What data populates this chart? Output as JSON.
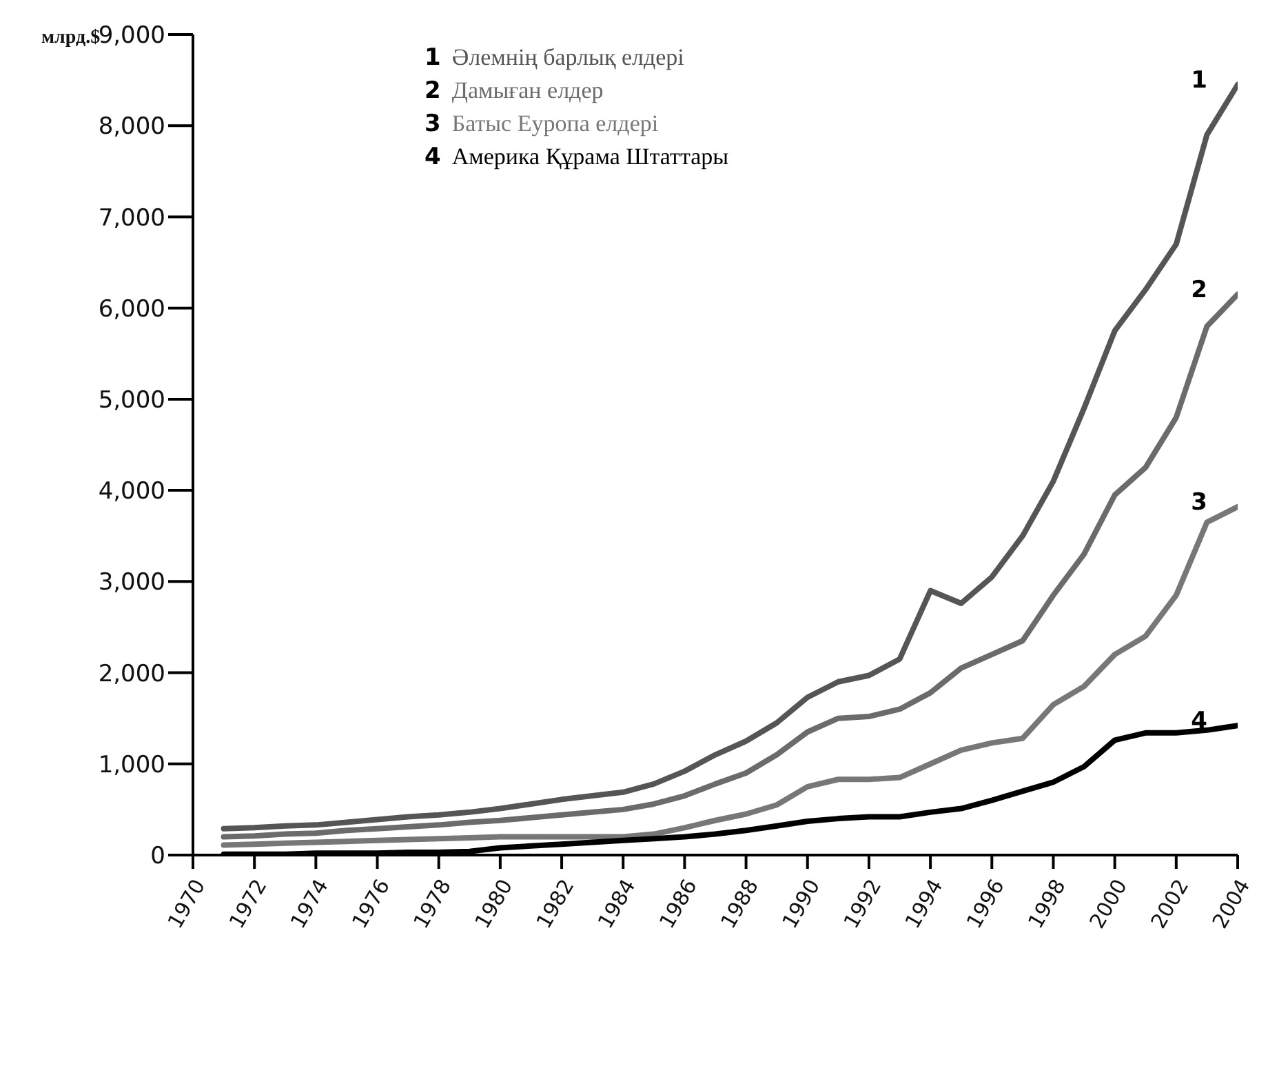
{
  "chart_data": {
    "type": "line",
    "ylabel": "млрд.$",
    "x": [
      1971,
      1972,
      1973,
      1974,
      1975,
      1976,
      1977,
      1978,
      1979,
      1980,
      1981,
      1982,
      1983,
      1984,
      1985,
      1986,
      1987,
      1988,
      1989,
      1990,
      1991,
      1992,
      1993,
      1994,
      1995,
      1996,
      1997,
      1998,
      1999,
      2000,
      2001,
      2002,
      2003,
      2004
    ],
    "series": [
      {
        "name": "Әлемнің барлық елдері",
        "color": "#555555",
        "values": [
          290,
          300,
          320,
          330,
          360,
          390,
          420,
          440,
          470,
          510,
          560,
          610,
          650,
          690,
          780,
          920,
          1100,
          1250,
          1450,
          1730,
          1900,
          1970,
          2150,
          2900,
          2760,
          3050,
          3500,
          4100,
          4900,
          5750,
          6200,
          6700,
          7900,
          8450
        ]
      },
      {
        "name": "Дамыған елдер",
        "color": "#6b6b6b",
        "values": [
          200,
          210,
          230,
          240,
          270,
          290,
          310,
          330,
          360,
          380,
          410,
          440,
          470,
          500,
          560,
          650,
          780,
          900,
          1100,
          1350,
          1500,
          1520,
          1600,
          1780,
          2050,
          2200,
          2350,
          2850,
          3300,
          3950,
          4250,
          4800,
          5800,
          6150
        ]
      },
      {
        "name": "Батыс Еуропа елдері",
        "color": "#777777",
        "values": [
          110,
          120,
          130,
          140,
          150,
          160,
          170,
          180,
          190,
          200,
          200,
          200,
          200,
          200,
          230,
          300,
          380,
          450,
          550,
          750,
          830,
          830,
          850,
          1000,
          1150,
          1230,
          1280,
          1650,
          1850,
          2200,
          2400,
          2850,
          3650,
          3820
        ]
      },
      {
        "name": "Америка Құрама Штаттары",
        "color": "#000000",
        "values": [
          10,
          10,
          10,
          20,
          20,
          20,
          30,
          30,
          40,
          80,
          100,
          120,
          140,
          160,
          180,
          200,
          230,
          270,
          320,
          370,
          400,
          420,
          420,
          470,
          510,
          600,
          700,
          800,
          970,
          1260,
          1340,
          1340,
          1370,
          1420
        ]
      }
    ],
    "annotations": [
      "1",
      "2",
      "3",
      "4"
    ],
    "xlim": [
      1970,
      2004
    ],
    "xticks": [
      1970,
      1972,
      1974,
      1976,
      1978,
      1980,
      1982,
      1984,
      1986,
      1988,
      1990,
      1992,
      1994,
      1996,
      1998,
      2000,
      2002,
      2004
    ],
    "ylim": [
      0,
      9000
    ],
    "yticks": [
      {
        "value": 0,
        "label": "0"
      },
      {
        "value": 1000,
        "label": "1,000"
      },
      {
        "value": 2000,
        "label": "2,000"
      },
      {
        "value": 3000,
        "label": "3,000"
      },
      {
        "value": 4000,
        "label": "4,000"
      },
      {
        "value": 5000,
        "label": "5,000"
      },
      {
        "value": 6000,
        "label": "6,000"
      },
      {
        "value": 7000,
        "label": "7,000"
      },
      {
        "value": 8000,
        "label": "8,000"
      },
      {
        "value": 9000,
        "label": "9,000"
      }
    ],
    "grid": false,
    "legend": "top",
    "marker": "none",
    "line_style": "solid"
  }
}
